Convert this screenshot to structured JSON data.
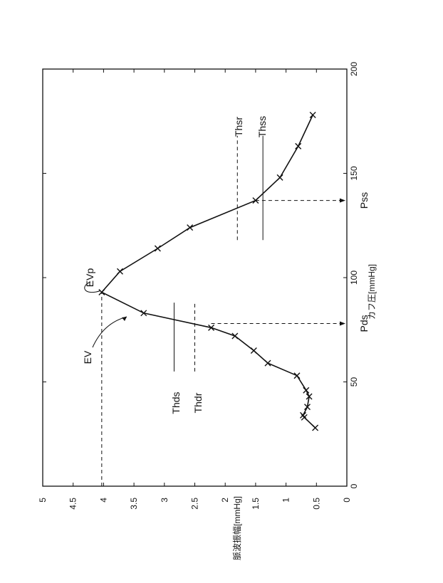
{
  "chart_data": {
    "type": "line",
    "orientation": "rotated-90-ccw",
    "xlabel": "カフ圧[mmHg]",
    "ylabel": "脈波振幅[mmHg]",
    "xlim": [
      0,
      200
    ],
    "ylim": [
      0,
      5
    ],
    "x_ticks": [
      0,
      50,
      100,
      150,
      200
    ],
    "y_ticks": [
      0,
      0.5,
      1,
      1.5,
      2,
      2.5,
      3,
      3.5,
      4,
      4.5,
      5
    ],
    "x_tick_labels": [
      "0",
      "50",
      "100",
      "150",
      "200"
    ],
    "y_tick_labels": [
      "0",
      "0.5",
      "1",
      "1.5",
      "2",
      "2.5",
      "3",
      "3.5",
      "4",
      "4.5",
      "5"
    ],
    "grid": false,
    "markers": "x",
    "series": [
      {
        "points": [
          [
            28,
            0.52
          ],
          [
            33,
            0.7
          ],
          [
            34,
            0.72
          ],
          [
            38,
            0.65
          ],
          [
            43,
            0.62
          ],
          [
            46,
            0.67
          ],
          [
            53,
            0.82
          ],
          [
            59,
            1.3
          ],
          [
            65,
            1.53
          ],
          [
            72,
            1.84
          ],
          [
            76,
            2.23
          ],
          [
            83,
            3.34
          ],
          [
            93,
            4.03
          ],
          [
            103,
            3.73
          ],
          [
            114,
            3.11
          ],
          [
            124,
            2.58
          ],
          [
            137,
            1.5
          ],
          [
            148,
            1.1
          ],
          [
            163,
            0.8
          ],
          [
            178,
            0.56
          ]
        ]
      }
    ],
    "annotations": {
      "Thds": "Thds",
      "Thdr": "Thdr",
      "Thsr": "Thsr",
      "Thss": "Thss",
      "Pds": "Pds",
      "Pss": "Pss",
      "EVp": "EVp",
      "EV": "EV"
    },
    "reference_values": {
      "EVp_level": 4.03,
      "Pds": 78,
      "Pss": 137,
      "Thds_level": 2.84,
      "Thdr_level": 2.5,
      "Thsr_level": 1.8,
      "Thss_level": 1.38
    }
  }
}
